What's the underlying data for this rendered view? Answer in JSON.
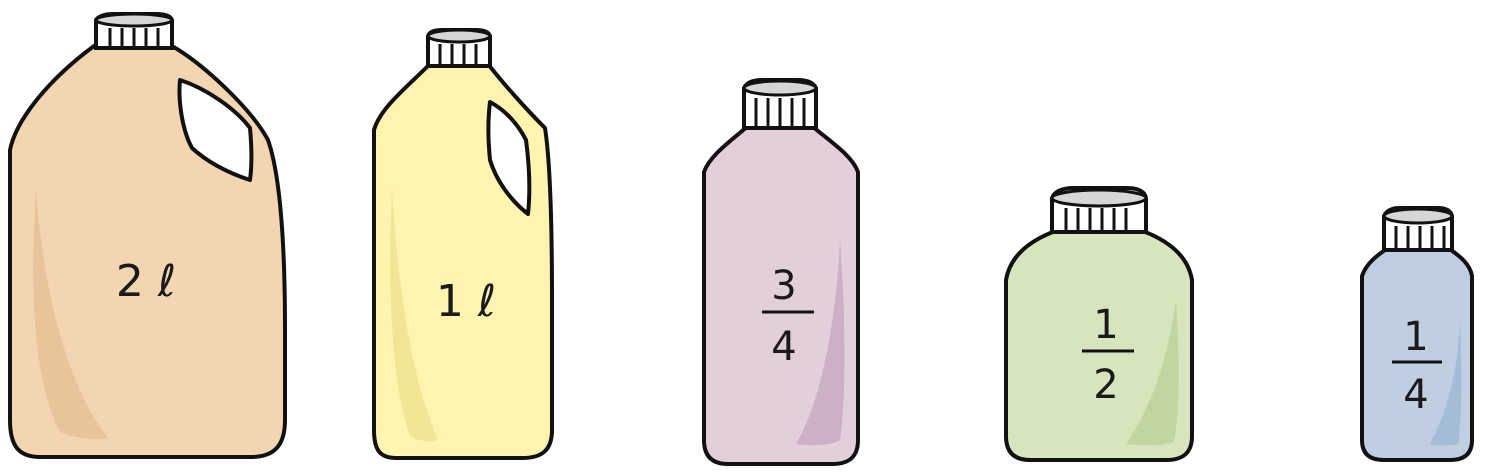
{
  "containers": [
    {
      "id": "jug-2l",
      "capacity_label": "2 ℓ",
      "body_color": "#f3d5b1",
      "shade_color": "#e9c49a"
    },
    {
      "id": "jug-1l",
      "capacity_label": "1 ℓ",
      "body_color": "#fef4b0",
      "shade_color": "#f1e492"
    },
    {
      "id": "bottle-three-quarters",
      "numerator": "3",
      "denominator": "4",
      "body_color": "#e3cfdc",
      "shade_color": "#cbb0c6"
    },
    {
      "id": "bottle-half",
      "numerator": "1",
      "denominator": "2",
      "body_color": "#d7e5bd",
      "shade_color": "#c0d69e"
    },
    {
      "id": "bottle-quarter",
      "numerator": "1",
      "denominator": "4",
      "body_color": "#bfcfe1",
      "shade_color": "#a3bcd8"
    }
  ],
  "cap_color": "#ffffff",
  "cap_top_color": "#d6d6d6",
  "outline_color": "#111111"
}
